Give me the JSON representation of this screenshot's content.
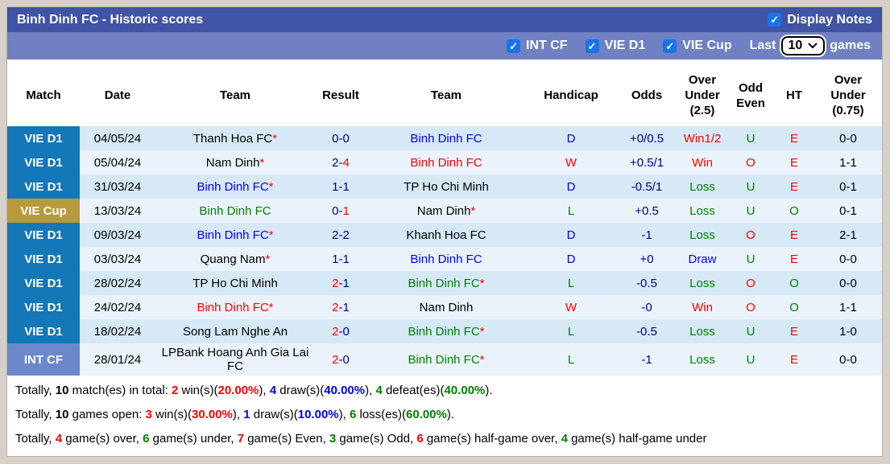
{
  "header": {
    "title": "Binh Dinh FC - Historic scores",
    "display_notes": {
      "label": "Display Notes",
      "checked": true,
      "check_glyph": "✓"
    }
  },
  "filters": {
    "competitions": [
      {
        "label": "INT CF",
        "checked": true
      },
      {
        "label": "VIE D1",
        "checked": true
      },
      {
        "label": "VIE Cup",
        "checked": true
      }
    ],
    "check_glyph": "✓",
    "last_label": "Last",
    "games_count": "10",
    "games_label": "games"
  },
  "table": {
    "columns": [
      "Match",
      "Date",
      "Team",
      "Result",
      "Team",
      "Handicap",
      "Odds",
      "Over Under (2.5)",
      "Odd Even",
      "HT",
      "Over Under (0.75)"
    ],
    "score_separator": "-",
    "rows": [
      {
        "league": "VIE D1",
        "league_color": "#1477b8",
        "date": "04/05/24",
        "home": {
          "name": "Thanh Hoa FC",
          "star": "*",
          "color": "#000000"
        },
        "score": {
          "home": "0",
          "home_color": "#00008b",
          "away": "0",
          "away_color": "#00008b"
        },
        "away": {
          "name": "Binh Dinh FC",
          "star": "",
          "color": "#0000ff"
        },
        "wdl": {
          "t": "D",
          "c": "#0000ff"
        },
        "handicap": "+0/0.5",
        "odds": {
          "t": "Win1/2",
          "c": "#ff0000"
        },
        "ou25": {
          "t": "U",
          "c": "#008000"
        },
        "oe": {
          "t": "E",
          "c": "#ff0000"
        },
        "ht": "0-0",
        "ou075": {
          "t": "U",
          "c": "#008000"
        }
      },
      {
        "league": "VIE D1",
        "league_color": "#1477b8",
        "date": "05/04/24",
        "home": {
          "name": "Nam Dinh",
          "star": "*",
          "color": "#000000"
        },
        "score": {
          "home": "2",
          "home_color": "#00008b",
          "away": "4",
          "away_color": "#ff0000"
        },
        "away": {
          "name": "Binh Dinh FC",
          "star": "",
          "color": "#ff0000"
        },
        "wdl": {
          "t": "W",
          "c": "#ff0000"
        },
        "handicap": "+0.5/1",
        "odds": {
          "t": "Win",
          "c": "#ff0000"
        },
        "ou25": {
          "t": "O",
          "c": "#ff0000"
        },
        "oe": {
          "t": "E",
          "c": "#ff0000"
        },
        "ht": "1-1",
        "ou075": {
          "t": "O",
          "c": "#ff0000"
        }
      },
      {
        "league": "VIE D1",
        "league_color": "#1477b8",
        "date": "31/03/24",
        "home": {
          "name": "Binh Dinh FC",
          "star": "*",
          "color": "#0000ff"
        },
        "score": {
          "home": "1",
          "home_color": "#00008b",
          "away": "1",
          "away_color": "#00008b"
        },
        "away": {
          "name": "TP Ho Chi Minh",
          "star": "",
          "color": "#000000"
        },
        "wdl": {
          "t": "D",
          "c": "#0000ff"
        },
        "handicap": "-0.5/1",
        "odds": {
          "t": "Loss",
          "c": "#008000"
        },
        "ou25": {
          "t": "U",
          "c": "#008000"
        },
        "oe": {
          "t": "E",
          "c": "#ff0000"
        },
        "ht": "0-1",
        "ou075": {
          "t": "O",
          "c": "#ff0000"
        }
      },
      {
        "league": "VIE Cup",
        "league_color": "#b79b3b",
        "date": "13/03/24",
        "home": {
          "name": "Binh Dinh FC",
          "star": "",
          "color": "#008000"
        },
        "score": {
          "home": "0",
          "home_color": "#00008b",
          "away": "1",
          "away_color": "#ff0000"
        },
        "away": {
          "name": "Nam Dinh",
          "star": "*",
          "color": "#000000"
        },
        "wdl": {
          "t": "L",
          "c": "#008000"
        },
        "handicap": "+0.5",
        "odds": {
          "t": "Loss",
          "c": "#008000"
        },
        "ou25": {
          "t": "U",
          "c": "#008000"
        },
        "oe": {
          "t": "O",
          "c": "#008000"
        },
        "ht": "0-1",
        "ou075": {
          "t": "O",
          "c": "#ff0000"
        }
      },
      {
        "league": "VIE D1",
        "league_color": "#1477b8",
        "date": "09/03/24",
        "home": {
          "name": "Binh Dinh FC",
          "star": "*",
          "color": "#0000ff"
        },
        "score": {
          "home": "2",
          "home_color": "#00008b",
          "away": "2",
          "away_color": "#00008b"
        },
        "away": {
          "name": "Khanh Hoa FC",
          "star": "",
          "color": "#000000"
        },
        "wdl": {
          "t": "D",
          "c": "#0000ff"
        },
        "handicap": "-1",
        "odds": {
          "t": "Loss",
          "c": "#008000"
        },
        "ou25": {
          "t": "O",
          "c": "#ff0000"
        },
        "oe": {
          "t": "E",
          "c": "#ff0000"
        },
        "ht": "2-1",
        "ou075": {
          "t": "O",
          "c": "#ff0000"
        }
      },
      {
        "league": "VIE D1",
        "league_color": "#1477b8",
        "date": "03/03/24",
        "home": {
          "name": "Quang Nam",
          "star": "*",
          "color": "#000000"
        },
        "score": {
          "home": "1",
          "home_color": "#00008b",
          "away": "1",
          "away_color": "#00008b"
        },
        "away": {
          "name": "Binh Dinh FC",
          "star": "",
          "color": "#0000ff"
        },
        "wdl": {
          "t": "D",
          "c": "#0000ff"
        },
        "handicap": "+0",
        "odds": {
          "t": "Draw",
          "c": "#0000ff"
        },
        "ou25": {
          "t": "U",
          "c": "#008000"
        },
        "oe": {
          "t": "E",
          "c": "#ff0000"
        },
        "ht": "0-0",
        "ou075": {
          "t": "U",
          "c": "#008000"
        }
      },
      {
        "league": "VIE D1",
        "league_color": "#1477b8",
        "date": "28/02/24",
        "home": {
          "name": "TP Ho Chi Minh",
          "star": "",
          "color": "#000000"
        },
        "score": {
          "home": "2",
          "home_color": "#ff0000",
          "away": "1",
          "away_color": "#00008b"
        },
        "away": {
          "name": "Binh Dinh FC",
          "star": "*",
          "color": "#008000"
        },
        "wdl": {
          "t": "L",
          "c": "#008000"
        },
        "handicap": "-0.5",
        "odds": {
          "t": "Loss",
          "c": "#008000"
        },
        "ou25": {
          "t": "O",
          "c": "#ff0000"
        },
        "oe": {
          "t": "O",
          "c": "#008000"
        },
        "ht": "0-0",
        "ou075": {
          "t": "U",
          "c": "#008000"
        }
      },
      {
        "league": "VIE D1",
        "league_color": "#1477b8",
        "date": "24/02/24",
        "home": {
          "name": "Binh Dinh FC",
          "star": "*",
          "color": "#ff0000"
        },
        "score": {
          "home": "2",
          "home_color": "#ff0000",
          "away": "1",
          "away_color": "#00008b"
        },
        "away": {
          "name": "Nam Dinh",
          "star": "",
          "color": "#000000"
        },
        "wdl": {
          "t": "W",
          "c": "#ff0000"
        },
        "handicap": "-0",
        "odds": {
          "t": "Win",
          "c": "#ff0000"
        },
        "ou25": {
          "t": "O",
          "c": "#ff0000"
        },
        "oe": {
          "t": "O",
          "c": "#008000"
        },
        "ht": "1-1",
        "ou075": {
          "t": "O",
          "c": "#ff0000"
        }
      },
      {
        "league": "VIE D1",
        "league_color": "#1477b8",
        "date": "18/02/24",
        "home": {
          "name": "Song Lam Nghe An",
          "star": "",
          "color": "#000000"
        },
        "score": {
          "home": "2",
          "home_color": "#ff0000",
          "away": "0",
          "away_color": "#00008b"
        },
        "away": {
          "name": "Binh Dinh FC",
          "star": "*",
          "color": "#008000"
        },
        "wdl": {
          "t": "L",
          "c": "#008000"
        },
        "handicap": "-0.5",
        "odds": {
          "t": "Loss",
          "c": "#008000"
        },
        "ou25": {
          "t": "U",
          "c": "#008000"
        },
        "oe": {
          "t": "E",
          "c": "#ff0000"
        },
        "ht": "1-0",
        "ou075": {
          "t": "O",
          "c": "#ff0000"
        }
      },
      {
        "league": "INT CF",
        "league_color": "#6d87cc",
        "date": "28/01/24",
        "home": {
          "name": "LPBank Hoang Anh Gia Lai FC",
          "star": "",
          "color": "#000000"
        },
        "score": {
          "home": "2",
          "home_color": "#ff0000",
          "away": "0",
          "away_color": "#00008b"
        },
        "away": {
          "name": "Binh Dinh FC",
          "star": "*",
          "color": "#008000"
        },
        "wdl": {
          "t": "L",
          "c": "#008000"
        },
        "handicap": "-1",
        "odds": {
          "t": "Loss",
          "c": "#008000"
        },
        "ou25": {
          "t": "U",
          "c": "#008000"
        },
        "oe": {
          "t": "E",
          "c": "#ff0000"
        },
        "ht": "0-0",
        "ou075": {
          "t": "U",
          "c": "#008000"
        }
      }
    ]
  },
  "summary": {
    "lines": [
      {
        "segments": [
          {
            "t": "Totally, "
          },
          {
            "t": "10",
            "b": 1
          },
          {
            "t": " match(es) in total: "
          },
          {
            "t": "2",
            "c": "#ff0000",
            "b": 1
          },
          {
            "t": " win(s)("
          },
          {
            "t": "20.00%",
            "c": "#ff0000",
            "b": 1
          },
          {
            "t": "), "
          },
          {
            "t": "4",
            "c": "#0000ff",
            "b": 1
          },
          {
            "t": " draw(s)("
          },
          {
            "t": "40.00%",
            "c": "#0000ff",
            "b": 1
          },
          {
            "t": "), "
          },
          {
            "t": "4",
            "c": "#008000",
            "b": 1
          },
          {
            "t": " defeat(es)("
          },
          {
            "t": "40.00%",
            "c": "#008000",
            "b": 1
          },
          {
            "t": ")."
          }
        ]
      },
      {
        "segments": [
          {
            "t": "Totally, "
          },
          {
            "t": "10",
            "b": 1
          },
          {
            "t": " games open: "
          },
          {
            "t": "3",
            "c": "#ff0000",
            "b": 1
          },
          {
            "t": " win(s)("
          },
          {
            "t": "30.00%",
            "c": "#ff0000",
            "b": 1
          },
          {
            "t": "), "
          },
          {
            "t": "1",
            "c": "#0000ff",
            "b": 1
          },
          {
            "t": " draw(s)("
          },
          {
            "t": "10.00%",
            "c": "#0000ff",
            "b": 1
          },
          {
            "t": "), "
          },
          {
            "t": "6",
            "c": "#008000",
            "b": 1
          },
          {
            "t": " loss(es)("
          },
          {
            "t": "60.00%",
            "c": "#008000",
            "b": 1
          },
          {
            "t": ")."
          }
        ]
      },
      {
        "segments": [
          {
            "t": "Totally, "
          },
          {
            "t": "4",
            "c": "#ff0000",
            "b": 1
          },
          {
            "t": " game(s) over, "
          },
          {
            "t": "6",
            "c": "#008000",
            "b": 1
          },
          {
            "t": " game(s) under, "
          },
          {
            "t": "7",
            "c": "#ff0000",
            "b": 1
          },
          {
            "t": " game(s) Even, "
          },
          {
            "t": "3",
            "c": "#008000",
            "b": 1
          },
          {
            "t": " game(s) Odd, "
          },
          {
            "t": "6",
            "c": "#ff0000",
            "b": 1
          },
          {
            "t": " game(s) half-game over, "
          },
          {
            "t": "4",
            "c": "#008000",
            "b": 1
          },
          {
            "t": " game(s) half-game under"
          }
        ]
      }
    ]
  },
  "colors": {
    "title_bar": "#4053a4",
    "filter_bar": "#6f80c3",
    "checkbox_blue": "#1a73e8",
    "badge_vie_d1": "#1477b8",
    "badge_vie_cup": "#b79b3b",
    "badge_int_cf": "#6d87cc",
    "row_odd": "#d7e9f7",
    "row_even": "#eaf3fb",
    "win_red": "#ff0000",
    "draw_blue": "#0000ff",
    "loss_green": "#008000",
    "score_navy": "#00008b"
  }
}
